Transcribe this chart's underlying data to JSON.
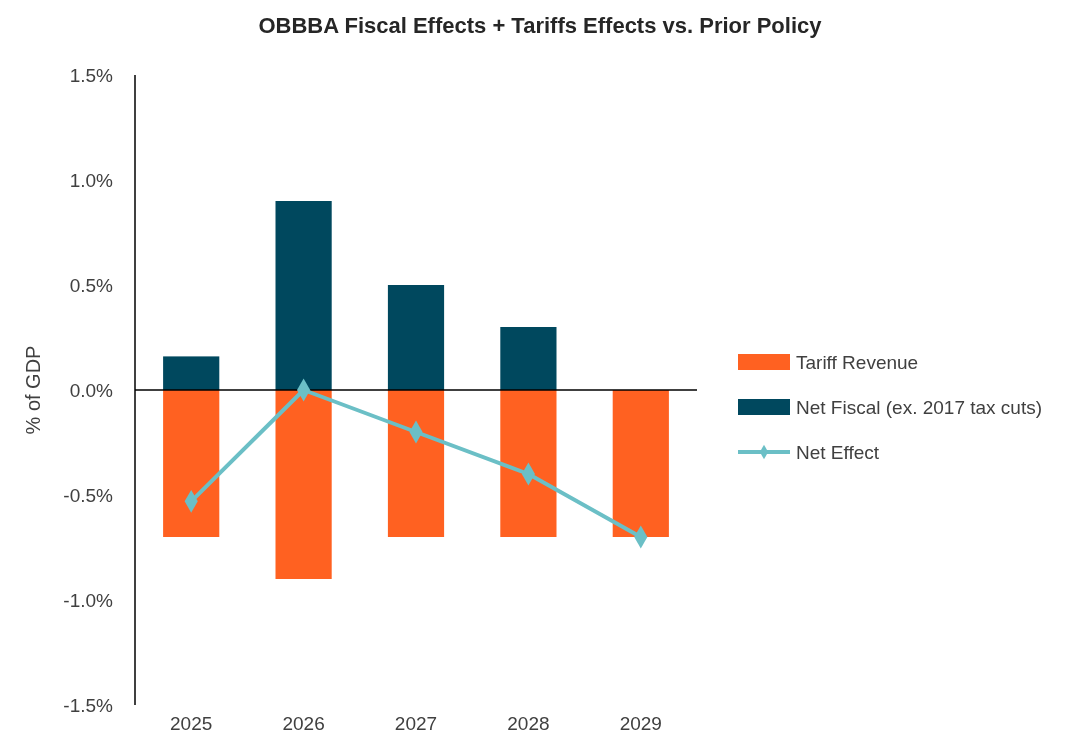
{
  "chart_data": {
    "type": "bar",
    "title": "OBBBA Fiscal Effects + Tariffs Effects vs. Prior Policy",
    "ylabel": "% of GDP",
    "categories": [
      "2025",
      "2026",
      "2027",
      "2028",
      "2029"
    ],
    "stacked": true,
    "series": [
      {
        "name": "Tariff Revenue",
        "color": "#ff6121",
        "values": [
          -0.7,
          -0.9,
          -0.7,
          -0.7,
          -0.7
        ]
      },
      {
        "name": "Net Fiscal (ex. 2017 tax cuts)",
        "color": "#00485e",
        "values": [
          0.16,
          0.9,
          0.5,
          0.3,
          0
        ]
      },
      {
        "name": "Net Effect",
        "type": "line",
        "color": "#6bbfc6",
        "marker": "diamond",
        "values": [
          -0.53,
          0,
          -0.2,
          -0.4,
          -0.7
        ]
      }
    ],
    "ylim": [
      -1.5,
      1.5
    ],
    "yticks": [
      {
        "value": -1.5,
        "label": "-1.5%"
      },
      {
        "value": -1,
        "label": "-1.0%"
      },
      {
        "value": -0.5,
        "label": "-0.5%"
      },
      {
        "value": 0,
        "label": "0.0%"
      },
      {
        "value": 0.5,
        "label": "0.5%"
      },
      {
        "value": 1,
        "label": "1.0%"
      },
      {
        "value": 1.5,
        "label": "1.5%"
      }
    ],
    "legend": "right"
  }
}
